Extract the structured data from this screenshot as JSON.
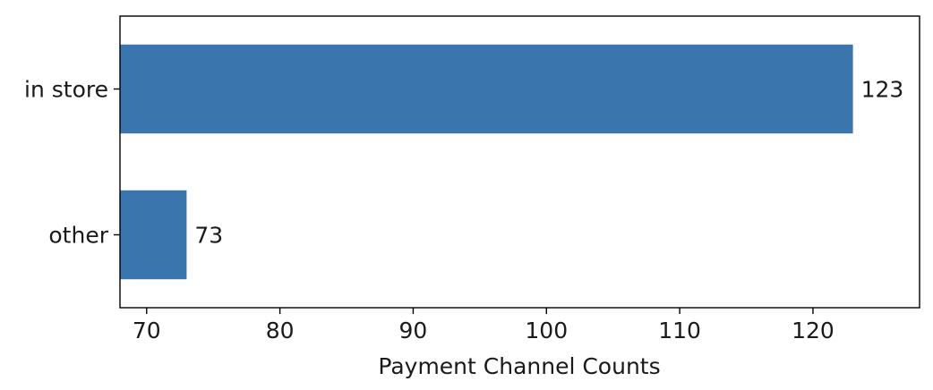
{
  "chart_data": {
    "type": "bar",
    "orientation": "horizontal",
    "categories": [
      "in store",
      "other"
    ],
    "values": [
      123,
      73
    ],
    "value_labels": [
      "123",
      "73"
    ],
    "title": "",
    "xlabel": "Payment Channel Counts",
    "ylabel": "",
    "xlim": [
      68,
      128
    ],
    "xticks": [
      70,
      80,
      90,
      100,
      110,
      120
    ],
    "grid": false,
    "bar_color": "#3a76ad"
  }
}
